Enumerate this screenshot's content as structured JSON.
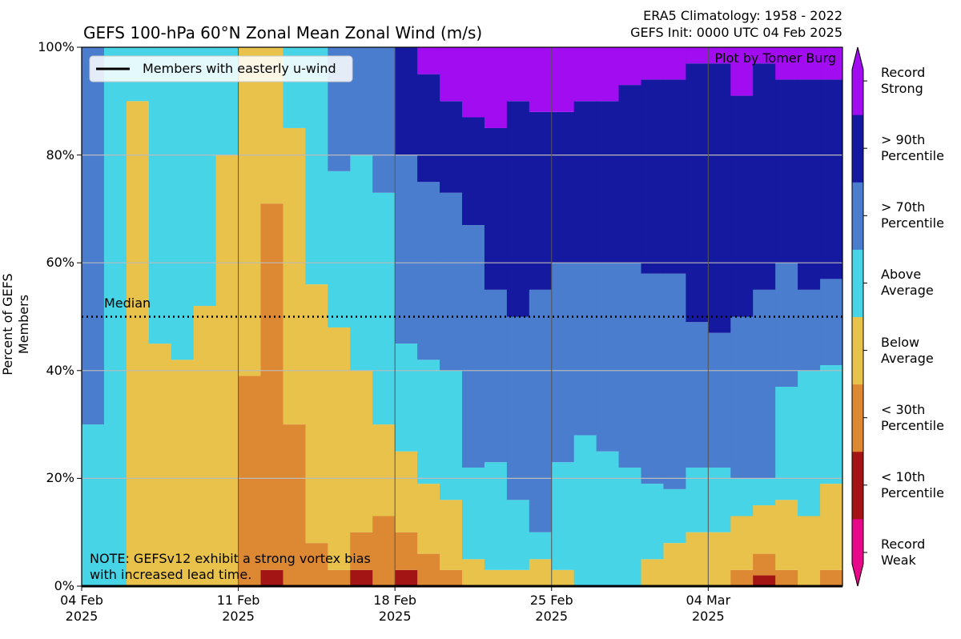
{
  "chart_data": {
    "type": "stacked-step",
    "title": "GEFS 100-hPa 60°N Zonal Mean Zonal Wind (m/s)",
    "subtitle": [
      "ERA5 Climatology: 1958 - 2022",
      "GEFS Init: 0000 UTC 04 Feb 2025"
    ],
    "y_label": "Percent of GEFS Members",
    "credit": "Plot by Tomer Burg",
    "note": "NOTE: GEFSv12 exhibit a strong vortex bias\nwith increased lead time.",
    "median_line": {
      "label": "Median",
      "value": 50
    },
    "easterly": {
      "name": "Members with easterly u-wind",
      "color": "#000000",
      "values": [
        0,
        0,
        0,
        0,
        0,
        0,
        0,
        0,
        0,
        0,
        0,
        0,
        0,
        0,
        0,
        0,
        0,
        0,
        0,
        0,
        0,
        0,
        0,
        0,
        0,
        0,
        0,
        0,
        0,
        0,
        0,
        0,
        0,
        0
      ]
    },
    "x": [
      0,
      1,
      2,
      3,
      4,
      5,
      6,
      7,
      8,
      9,
      10,
      11,
      12,
      13,
      14,
      15,
      16,
      17,
      18,
      19,
      20,
      21,
      22,
      23,
      24,
      25,
      26,
      27,
      28,
      29,
      30,
      31,
      32,
      33
    ],
    "xlim": [
      0,
      34
    ],
    "xticks": [
      {
        "value": 0,
        "label": "04 Feb\n2025"
      },
      {
        "value": 7,
        "label": "11 Feb\n2025"
      },
      {
        "value": 14,
        "label": "18 Feb\n2025"
      },
      {
        "value": 21,
        "label": "25 Feb\n2025"
      },
      {
        "value": 28,
        "label": "04 Mar\n2025"
      }
    ],
    "ylim": [
      0,
      100
    ],
    "yticks": [
      {
        "value": 0,
        "label": "0%"
      },
      {
        "value": 20,
        "label": "20%"
      },
      {
        "value": 40,
        "label": "40%"
      },
      {
        "value": 60,
        "label": "60%"
      },
      {
        "value": 80,
        "label": "80%"
      },
      {
        "value": 100,
        "label": "100%"
      }
    ],
    "grid": true,
    "series": [
      {
        "name": "Record\nWeak",
        "color": "#e8088a",
        "values": [
          0,
          0,
          0,
          0,
          0,
          0,
          0,
          0,
          0,
          0,
          0,
          0,
          0,
          0,
          0,
          0,
          0,
          0,
          0,
          0,
          0,
          0,
          0,
          0,
          0,
          0,
          0,
          0,
          0,
          0,
          0,
          0,
          0,
          0
        ]
      },
      {
        "name": "< 10th\nPercentile",
        "color": "#a31515",
        "values": [
          0,
          0,
          0,
          0,
          0,
          0,
          0,
          0,
          3,
          0,
          0,
          0,
          3,
          0,
          3,
          0,
          0,
          0,
          0,
          0,
          0,
          0,
          0,
          0,
          0,
          0,
          0,
          0,
          0,
          0,
          2,
          0,
          0,
          0
        ]
      },
      {
        "name": "< 30th\nPercentile",
        "color": "#dd8833",
        "values": [
          0,
          0,
          0,
          0,
          0,
          0,
          0,
          39,
          68,
          30,
          8,
          3,
          7,
          13,
          7,
          6,
          3,
          0,
          0,
          0,
          0,
          0,
          0,
          0,
          0,
          0,
          0,
          0,
          0,
          3,
          4,
          3,
          0,
          3
        ]
      },
      {
        "name": "Below\nAverage",
        "color": "#e8c24a",
        "values": [
          0,
          0,
          90,
          45,
          42,
          52,
          80,
          61,
          29,
          55,
          48,
          45,
          30,
          17,
          15,
          13,
          13,
          5,
          3,
          3,
          5,
          3,
          0,
          0,
          0,
          5,
          8,
          10,
          10,
          10,
          9,
          13,
          13,
          16
        ]
      },
      {
        "name": "Above\nAverage",
        "color": "#47d4e6",
        "values": [
          30,
          100,
          10,
          55,
          58,
          48,
          20,
          0,
          0,
          15,
          44,
          29,
          40,
          43,
          20,
          23,
          24,
          17,
          20,
          13,
          5,
          20,
          28,
          25,
          22,
          14,
          10,
          12,
          12,
          7,
          5,
          21,
          27,
          22
        ]
      },
      {
        "name": "> 70th\nPercentile",
        "color": "#4a7dce",
        "values": [
          70,
          0,
          0,
          0,
          0,
          0,
          0,
          0,
          0,
          0,
          0,
          23,
          20,
          27,
          35,
          33,
          33,
          45,
          32,
          34,
          45,
          37,
          32,
          35,
          38,
          39,
          40,
          27,
          25,
          30,
          35,
          23,
          15,
          16
        ]
      },
      {
        "name": "> 90th\nPercentile",
        "color": "#1419a0",
        "values": [
          0,
          0,
          0,
          0,
          0,
          0,
          0,
          0,
          0,
          0,
          0,
          0,
          0,
          0,
          20,
          20,
          17,
          20,
          30,
          40,
          33,
          28,
          30,
          30,
          33,
          36,
          36,
          48,
          50,
          41,
          42,
          34,
          39,
          37
        ]
      },
      {
        "name": "Record\nStrong",
        "color": "#a10cf0",
        "values": [
          0,
          0,
          0,
          0,
          0,
          0,
          0,
          0,
          0,
          0,
          0,
          0,
          0,
          0,
          0,
          5,
          10,
          13,
          15,
          10,
          12,
          12,
          10,
          10,
          7,
          6,
          6,
          3,
          3,
          9,
          3,
          6,
          6,
          6
        ]
      }
    ]
  }
}
